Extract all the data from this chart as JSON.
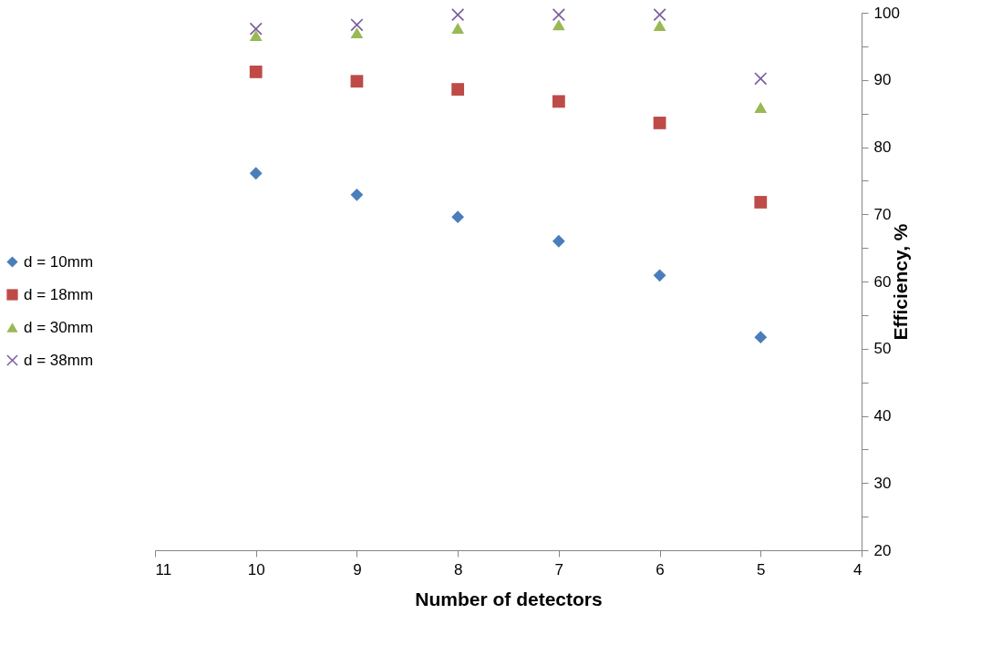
{
  "chart_data": {
    "type": "scatter",
    "xlabel": "Number of detectors",
    "ylabel": "Efficiency, %",
    "x": [
      10,
      9,
      8,
      7,
      6,
      5
    ],
    "series": [
      {
        "name": "d = 10mm",
        "color": "#4a7ebb",
        "marker": "diamond",
        "values": [
          76.1,
          72.9,
          69.6,
          66,
          60.9,
          51.7
        ]
      },
      {
        "name": "d = 18mm",
        "color": "#be4b48",
        "marker": "square",
        "values": [
          91.2,
          89.8,
          88.6,
          86.8,
          83.6,
          71.8
        ]
      },
      {
        "name": "d = 30mm",
        "color": "#98b954",
        "marker": "triangle",
        "values": [
          96.6,
          97,
          97.7,
          98.2,
          98.1,
          85.9
        ]
      },
      {
        "name": "d = 38mm",
        "color": "#7d60a0",
        "marker": "cross",
        "values": [
          97.6,
          98.2,
          99.7,
          99.7,
          99.7,
          90.2
        ]
      }
    ],
    "xlim": [
      11,
      4
    ],
    "xticks": [
      11,
      10,
      9,
      8,
      7,
      6,
      5,
      4
    ],
    "ylim": [
      20,
      100
    ],
    "yticks": [
      20,
      {
        "value": 25,
        "label": null
      },
      30,
      {
        "value": 35,
        "label": null
      },
      40,
      {
        "value": 45,
        "label": null
      },
      50,
      {
        "value": 55,
        "label": null
      },
      60,
      {
        "value": 65,
        "label": null
      },
      70,
      {
        "value": 75,
        "label": null
      },
      80,
      {
        "value": 85,
        "label": null
      },
      90,
      {
        "value": 95,
        "label": null
      },
      100
    ],
    "grid": false,
    "legend": "left"
  }
}
